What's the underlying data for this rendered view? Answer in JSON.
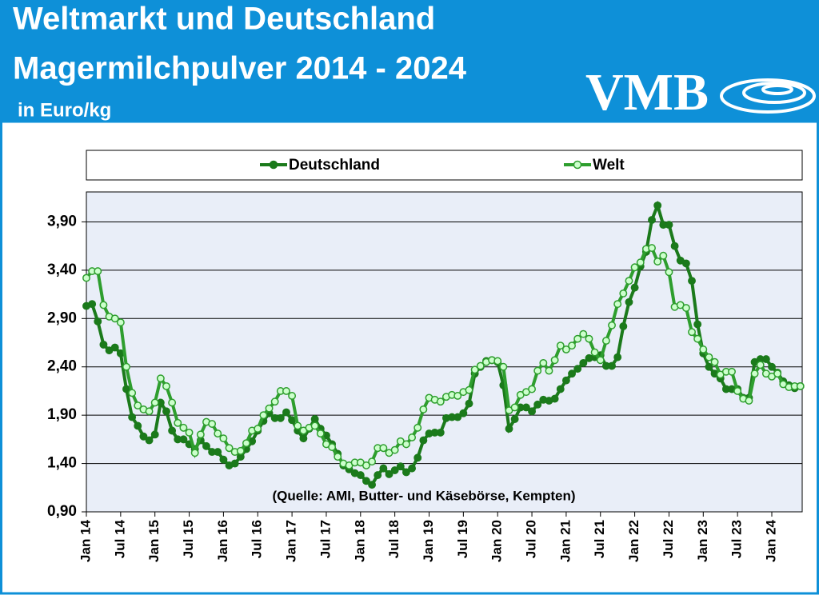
{
  "chart_data": {
    "type": "line",
    "title": [
      "Weltmarkt und Deutschland",
      "Magermilchpulver 2014 - 2024"
    ],
    "subtitle": "in Euro/kg",
    "logo": "VMB",
    "annotation": "(Quelle: AMI, Butter- und Käsebörse, Kempten)",
    "legend": "top",
    "grid": true,
    "categories": [
      "Jan 14",
      null,
      null,
      null,
      null,
      null,
      "Jul 14",
      null,
      null,
      null,
      null,
      null,
      "Jan 15",
      null,
      null,
      null,
      null,
      null,
      "Jul 15",
      null,
      null,
      null,
      null,
      null,
      "Jan 16",
      null,
      null,
      null,
      null,
      null,
      "Jul 16",
      null,
      null,
      null,
      null,
      null,
      "Jan 17",
      null,
      null,
      null,
      null,
      null,
      "Jul 17",
      null,
      null,
      null,
      null,
      null,
      "Jan 18",
      null,
      null,
      null,
      null,
      null,
      "Jul 18",
      null,
      null,
      null,
      null,
      null,
      "Jan 19",
      null,
      null,
      null,
      null,
      null,
      "Jul 19",
      null,
      null,
      null,
      null,
      null,
      "Jan 20",
      null,
      null,
      null,
      null,
      null,
      "Jul 20",
      null,
      null,
      null,
      null,
      null,
      "Jan 21",
      null,
      null,
      null,
      null,
      null,
      "Jul 21",
      null,
      null,
      null,
      null,
      null,
      "Jan 22",
      null,
      null,
      null,
      null,
      null,
      "Jul 22",
      null,
      null,
      null,
      null,
      null,
      "Jan 23",
      null,
      null,
      null,
      null,
      null,
      "Jul 23",
      null,
      null,
      null,
      null,
      null,
      "Jan 24",
      null,
      null,
      null,
      null,
      null
    ],
    "ylim": [
      0.9,
      4.21
    ],
    "yticks": [
      {
        "value": 0.9,
        "label": "0,90"
      },
      {
        "value": 1.4,
        "label": "1,40"
      },
      {
        "value": 1.9,
        "label": "1,90"
      },
      {
        "value": 2.4,
        "label": "2,40"
      },
      {
        "value": 2.9,
        "label": "2,90"
      },
      {
        "value": 3.4,
        "label": "3,40"
      },
      {
        "value": 3.9,
        "label": "3,90"
      }
    ],
    "series": [
      {
        "name": "Deutschland",
        "color": "#1b7a1b",
        "marker_fill": "#1b7a1b",
        "values": [
          3.03,
          3.05,
          2.87,
          2.63,
          2.57,
          2.6,
          2.54,
          2.17,
          1.88,
          1.79,
          1.68,
          1.64,
          1.7,
          2.03,
          1.94,
          1.74,
          1.65,
          1.65,
          1.6,
          1.55,
          1.64,
          1.58,
          1.52,
          1.52,
          1.44,
          1.38,
          1.4,
          1.47,
          1.55,
          1.63,
          1.74,
          1.84,
          1.92,
          1.87,
          1.87,
          1.93,
          1.85,
          1.74,
          1.66,
          1.76,
          1.86,
          1.76,
          1.69,
          1.6,
          1.5,
          1.38,
          1.34,
          1.3,
          1.28,
          1.22,
          1.18,
          1.28,
          1.35,
          1.29,
          1.33,
          1.37,
          1.31,
          1.35,
          1.46,
          1.64,
          1.71,
          1.72,
          1.72,
          1.87,
          1.88,
          1.88,
          1.92,
          2.02,
          2.33,
          2.4,
          2.46,
          2.47,
          2.45,
          2.21,
          1.76,
          1.86,
          1.98,
          1.98,
          1.94,
          2.01,
          2.06,
          2.05,
          2.07,
          2.17,
          2.26,
          2.33,
          2.38,
          2.44,
          2.49,
          2.5,
          2.52,
          2.41,
          2.41,
          2.5,
          2.82,
          3.07,
          3.22,
          3.44,
          3.59,
          3.92,
          4.07,
          3.87,
          3.87,
          3.65,
          3.5,
          3.47,
          3.29,
          2.84,
          2.54,
          2.4,
          2.33,
          2.28,
          2.17,
          2.17,
          2.17,
          2.08,
          2.08,
          2.45,
          2.48,
          2.48,
          2.4,
          2.34,
          2.25,
          2.21,
          2.18,
          2.2
        ]
      },
      {
        "name": "Welt",
        "color": "#2e9e2e",
        "marker_fill": "#ccffcc",
        "values": [
          3.32,
          3.39,
          3.39,
          3.04,
          2.92,
          2.9,
          2.86,
          2.4,
          2.13,
          2.0,
          1.96,
          1.94,
          2.03,
          2.28,
          2.2,
          2.03,
          1.82,
          1.77,
          1.72,
          1.51,
          1.7,
          1.83,
          1.81,
          1.71,
          1.66,
          1.56,
          1.52,
          1.53,
          1.61,
          1.74,
          1.76,
          1.9,
          1.97,
          2.04,
          2.15,
          2.15,
          2.1,
          1.79,
          1.74,
          1.77,
          1.79,
          1.71,
          1.6,
          1.57,
          1.47,
          1.4,
          1.38,
          1.41,
          1.41,
          1.38,
          1.42,
          1.56,
          1.56,
          1.51,
          1.54,
          1.63,
          1.6,
          1.67,
          1.77,
          1.96,
          2.08,
          2.06,
          2.04,
          2.09,
          2.11,
          2.1,
          2.14,
          2.16,
          2.37,
          2.41,
          2.45,
          2.47,
          2.46,
          2.4,
          1.95,
          1.98,
          2.11,
          2.14,
          2.17,
          2.36,
          2.44,
          2.36,
          2.47,
          2.62,
          2.58,
          2.62,
          2.69,
          2.74,
          2.69,
          2.55,
          2.47,
          2.67,
          2.83,
          3.05,
          3.16,
          3.29,
          3.43,
          3.48,
          3.62,
          3.63,
          3.49,
          3.55,
          3.38,
          3.02,
          3.04,
          3.01,
          2.76,
          2.69,
          2.58,
          2.5,
          2.45,
          2.32,
          2.35,
          2.35,
          2.15,
          2.07,
          2.05,
          2.33,
          2.42,
          2.33,
          2.3,
          2.33,
          2.22,
          2.19,
          2.2,
          2.2
        ]
      }
    ]
  }
}
